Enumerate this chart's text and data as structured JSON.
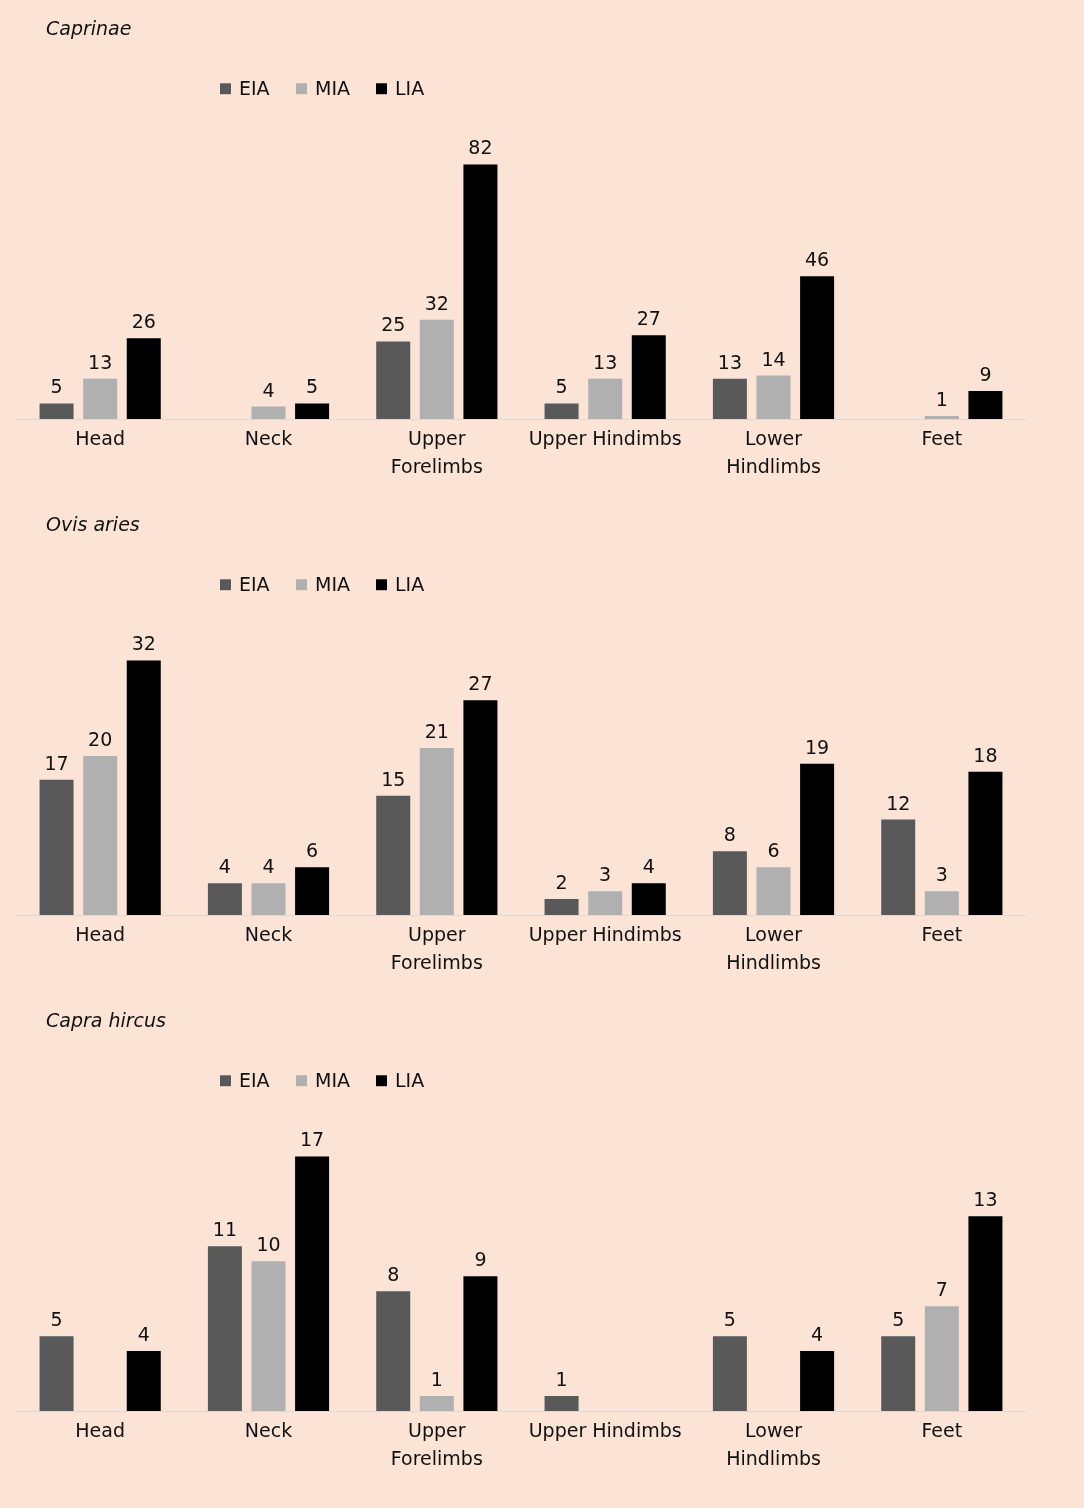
{
  "chart_data": [
    {
      "type": "bar",
      "title": "Caprinae",
      "categories": [
        "Head",
        "Neck",
        "Upper Forelimbs",
        "Upper Hindimbs",
        "Lower Hindlimbs",
        "Feet"
      ],
      "series": [
        {
          "name": "EIA",
          "color": "#595959",
          "values": [
            5,
            null,
            25,
            5,
            13,
            null
          ]
        },
        {
          "name": "MIA",
          "color": "#b0b0b0",
          "values": [
            13,
            4,
            32,
            13,
            14,
            1
          ]
        },
        {
          "name": "LIA",
          "color": "#000000",
          "values": [
            26,
            5,
            82,
            27,
            46,
            9
          ]
        }
      ],
      "data_labels": true,
      "legend": "top",
      "grid": false
    },
    {
      "type": "bar",
      "title": "Ovis aries",
      "categories": [
        "Head",
        "Neck",
        "Upper Forelimbs",
        "Upper Hindimbs",
        "Lower Hindlimbs",
        "Feet"
      ],
      "series": [
        {
          "name": "EIA",
          "color": "#595959",
          "values": [
            17,
            4,
            15,
            2,
            8,
            12
          ]
        },
        {
          "name": "MIA",
          "color": "#b0b0b0",
          "values": [
            20,
            4,
            21,
            3,
            6,
            3
          ]
        },
        {
          "name": "LIA",
          "color": "#000000",
          "values": [
            32,
            6,
            27,
            4,
            19,
            18
          ]
        }
      ],
      "data_labels": true,
      "legend": "top",
      "grid": false
    },
    {
      "type": "bar",
      "title": "Capra hircus",
      "categories": [
        "Head",
        "Neck",
        "Upper Forelimbs",
        "Upper Hindimbs",
        "Lower Hindlimbs",
        "Feet"
      ],
      "series": [
        {
          "name": "EIA",
          "color": "#595959",
          "values": [
            5,
            11,
            8,
            1,
            5,
            5
          ]
        },
        {
          "name": "MIA",
          "color": "#b0b0b0",
          "values": [
            null,
            10,
            1,
            null,
            null,
            7
          ]
        },
        {
          "name": "LIA",
          "color": "#000000",
          "values": [
            4,
            17,
            9,
            null,
            4,
            13
          ]
        }
      ],
      "data_labels": true,
      "legend": "top",
      "grid": false
    }
  ]
}
